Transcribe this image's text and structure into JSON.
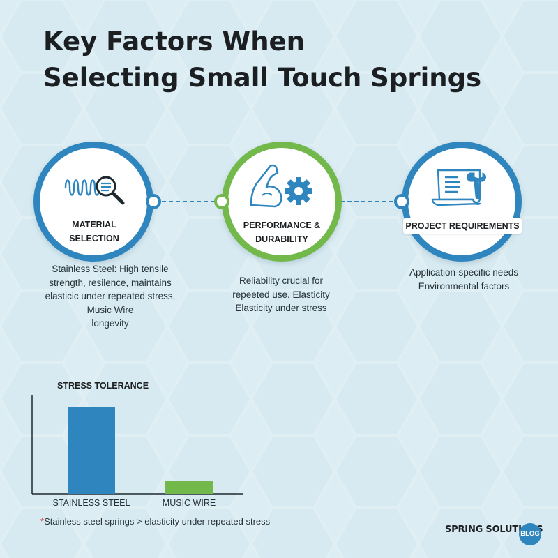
{
  "title": {
    "line1": "Key Factors When",
    "line2": "Selecting Small Touch Springs"
  },
  "factors": [
    {
      "label_line1": "MATERIAL",
      "label_line2": "SELECTION",
      "icon": "spring-magnifier-icon",
      "color": "#2f86bf",
      "desc": [
        "Stainless Steel: High tensile",
        "strength, resilence, maintains",
        "elasticic under repeated stress,",
        "Music Wire",
        "longevity"
      ]
    },
    {
      "label_line1": "PERFORMANCE &",
      "label_line2": "DURABILITY",
      "icon": "flexed-arm-gear-icon",
      "color": "#73b84b",
      "desc": [
        "Reliability crucial for",
        "repeeted use. Elasticity",
        "Elasticity under stress"
      ]
    },
    {
      "label_line1": "PROJECT REQUIREMENTS",
      "icon": "document-wrench-icon",
      "color": "#2f86bf",
      "desc": [
        "Application-specific needs",
        "Environmental factors"
      ]
    }
  ],
  "chart_data": {
    "type": "bar",
    "title": "STRESS TOLERANCE",
    "categories": [
      "STAINLESS STEEL",
      "MUSIC WIRE"
    ],
    "values": [
      0.88,
      0.13
    ],
    "value_scale": "relative (no tick labels shown)",
    "ylim": [
      0,
      1
    ],
    "colors": [
      "#2f86bf",
      "#73b84b"
    ],
    "grid": false,
    "legend": "none"
  },
  "footnote": {
    "marker": "*",
    "text": "Stainless steel springs > elasticity under repeated stress"
  },
  "brand": {
    "name": "SPRING SOLUTIONS",
    "badge": "BLOG"
  }
}
